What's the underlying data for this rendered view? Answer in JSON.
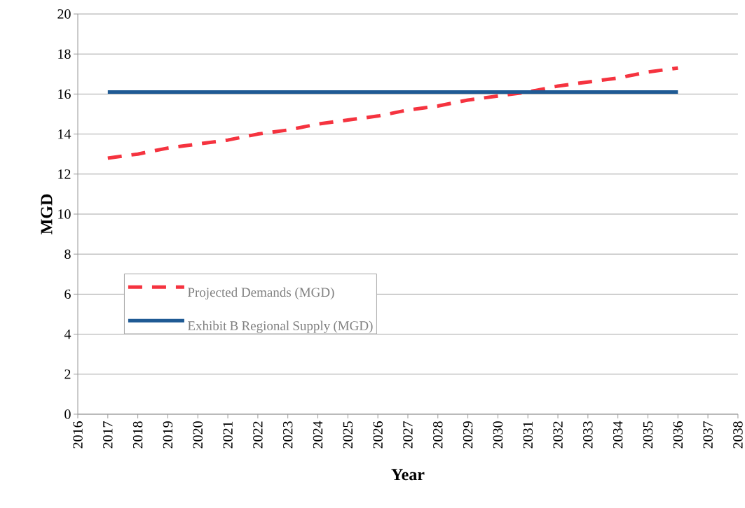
{
  "chart_data": {
    "type": "line",
    "xlabel": "Year",
    "ylabel": "MGD",
    "xlim": [
      2016,
      2038
    ],
    "xticks": [
      2016,
      2017,
      2018,
      2019,
      2020,
      2021,
      2022,
      2023,
      2024,
      2025,
      2026,
      2027,
      2028,
      2029,
      2030,
      2031,
      2032,
      2033,
      2034,
      2035,
      2036,
      2037,
      2038
    ],
    "ylim": [
      0,
      20
    ],
    "yticks": [
      0,
      2,
      4,
      6,
      8,
      10,
      12,
      14,
      16,
      18,
      20
    ],
    "x": [
      2017,
      2018,
      2019,
      2020,
      2021,
      2022,
      2023,
      2024,
      2025,
      2026,
      2027,
      2028,
      2029,
      2030,
      2031,
      2032,
      2033,
      2034,
      2035,
      2036
    ],
    "series": [
      {
        "name": "Projected Demands (MGD)",
        "color": "#f5333f",
        "line_style": "dashed",
        "values": [
          12.8,
          13.0,
          13.3,
          13.5,
          13.7,
          14.0,
          14.2,
          14.5,
          14.7,
          14.9,
          15.2,
          15.4,
          15.7,
          15.9,
          16.1,
          16.4,
          16.6,
          16.8,
          17.1,
          17.3
        ]
      },
      {
        "name": "Exhibit B Regional Supply (MGD)",
        "color": "#1f5a94",
        "line_style": "solid",
        "values": [
          16.1,
          16.1,
          16.1,
          16.1,
          16.1,
          16.1,
          16.1,
          16.1,
          16.1,
          16.1,
          16.1,
          16.1,
          16.1,
          16.1,
          16.1,
          16.1,
          16.1,
          16.1,
          16.1,
          16.1
        ]
      }
    ],
    "grid": "y",
    "legend": "left"
  }
}
